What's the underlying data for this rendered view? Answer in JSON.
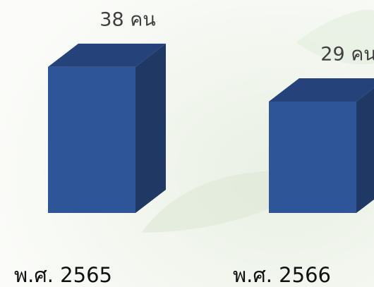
{
  "chart_data": {
    "type": "bar3d",
    "categories": [
      "พ.ศ. 2565",
      "พ.ศ. 2566"
    ],
    "values": [
      38,
      29
    ],
    "value_labels": [
      "38 คน",
      "29 คน"
    ],
    "color": "#2e5597"
  }
}
